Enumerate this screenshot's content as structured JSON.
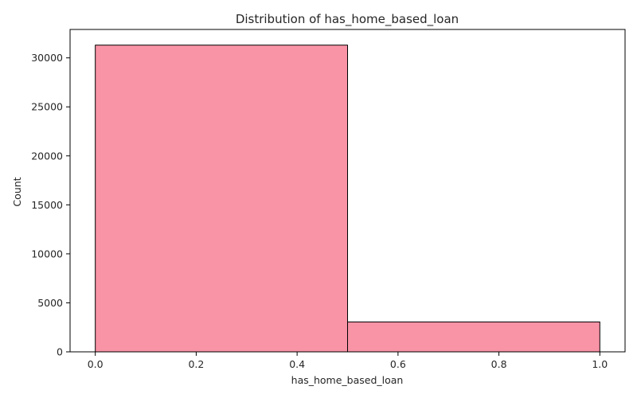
{
  "chart_data": {
    "type": "bar",
    "title": "Distribution of has_home_based_loan",
    "xlabel": "has_home_based_loan",
    "ylabel": "Count",
    "bins": [
      {
        "x0": 0.0,
        "x1": 0.5,
        "value": 31300
      },
      {
        "x0": 0.5,
        "x1": 1.0,
        "value": 3050
      }
    ],
    "xlim": [
      -0.05,
      1.05
    ],
    "ylim": [
      0,
      32900
    ],
    "xticks": [
      0.0,
      0.2,
      0.4,
      0.6,
      0.8,
      1.0
    ],
    "xtick_labels": [
      "0.0",
      "0.2",
      "0.4",
      "0.6",
      "0.8",
      "1.0"
    ],
    "yticks": [
      0,
      5000,
      10000,
      15000,
      20000,
      25000,
      30000
    ],
    "ytick_labels": [
      "0",
      "5000",
      "10000",
      "15000",
      "20000",
      "25000",
      "30000"
    ],
    "grid": false,
    "colors": {
      "bar_fill": "#f993a6",
      "bar_edge": "#000000",
      "axis": "#000000"
    }
  }
}
